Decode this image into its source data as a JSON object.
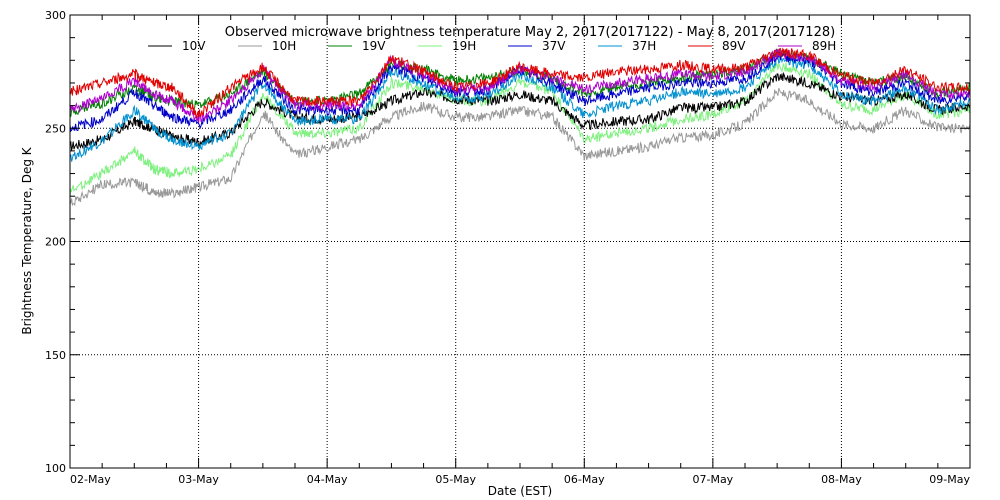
{
  "chart_data": {
    "type": "line",
    "title": "Observed microwave brightness temperature May  2, 2017(2017122) - May  8, 2017(2017128)",
    "xlabel": "Date (EST)",
    "ylabel": "Brightness Temperature, Deg K",
    "xlim": [
      0,
      7
    ],
    "ylim": [
      100,
      300
    ],
    "xticks": [
      {
        "x": 0,
        "label": "02-May"
      },
      {
        "x": 1,
        "label": "03-May"
      },
      {
        "x": 2,
        "label": "04-May"
      },
      {
        "x": 3,
        "label": "05-May"
      },
      {
        "x": 4,
        "label": "06-May"
      },
      {
        "x": 5,
        "label": "07-May"
      },
      {
        "x": 6,
        "label": "08-May"
      },
      {
        "x": 7,
        "label": "09-May"
      }
    ],
    "yticks": [
      100,
      150,
      200,
      250,
      300
    ],
    "grid": "dotted at major ticks",
    "legend_position": "top",
    "series": [
      {
        "name": "10V",
        "color": "#000000",
        "x": [
          0,
          0.25,
          0.5,
          0.65,
          0.8,
          1.0,
          1.25,
          1.5,
          1.75,
          2.0,
          2.25,
          2.5,
          2.75,
          3.0,
          3.25,
          3.5,
          3.75,
          4.0,
          4.25,
          4.5,
          4.75,
          5.0,
          5.25,
          5.5,
          5.75,
          6.0,
          6.25,
          6.5,
          6.75,
          7.0
        ],
        "y": [
          242,
          245,
          253,
          250,
          246,
          244,
          248,
          262,
          255,
          254,
          255,
          262,
          266,
          263,
          262,
          265,
          262,
          251,
          253,
          254,
          259,
          259,
          262,
          273,
          270,
          264,
          262,
          265,
          258,
          260
        ]
      },
      {
        "name": "10H",
        "color": "#999999",
        "x": [
          0,
          0.25,
          0.5,
          0.65,
          0.8,
          1.0,
          1.25,
          1.5,
          1.75,
          2.0,
          2.25,
          2.5,
          2.75,
          3.0,
          3.25,
          3.5,
          3.75,
          4.0,
          4.25,
          4.5,
          4.75,
          5.0,
          5.25,
          5.5,
          5.75,
          6.0,
          6.25,
          6.5,
          6.75,
          7.0
        ],
        "y": [
          217,
          225,
          226,
          222,
          221,
          224,
          228,
          257,
          238,
          242,
          245,
          255,
          260,
          255,
          255,
          258,
          255,
          238,
          240,
          242,
          246,
          247,
          252,
          266,
          262,
          252,
          250,
          258,
          250,
          250
        ]
      },
      {
        "name": "19V",
        "color": "#008000",
        "x": [
          0,
          0.25,
          0.5,
          0.65,
          0.8,
          1.0,
          1.25,
          1.5,
          1.75,
          2.0,
          2.25,
          2.5,
          2.75,
          3.0,
          3.25,
          3.5,
          3.75,
          4.0,
          4.25,
          4.5,
          4.75,
          5.0,
          5.25,
          5.5,
          5.75,
          6.0,
          6.25,
          6.5,
          6.75,
          7.0
        ],
        "y": [
          257,
          261,
          268,
          264,
          262,
          260,
          265,
          275,
          262,
          262,
          265,
          278,
          276,
          271,
          272,
          276,
          272,
          265,
          268,
          270,
          272,
          274,
          276,
          283,
          281,
          274,
          270,
          273,
          265,
          268
        ]
      },
      {
        "name": "19H",
        "color": "#80f080",
        "x": [
          0,
          0.25,
          0.5,
          0.65,
          0.8,
          1.0,
          1.25,
          1.5,
          1.75,
          2.0,
          2.25,
          2.5,
          2.75,
          3.0,
          3.25,
          3.5,
          3.75,
          4.0,
          4.25,
          4.5,
          4.75,
          5.0,
          5.25,
          5.5,
          5.75,
          6.0,
          6.25,
          6.5,
          6.75,
          7.0
        ],
        "y": [
          222,
          230,
          240,
          232,
          230,
          232,
          238,
          265,
          248,
          248,
          250,
          270,
          268,
          262,
          262,
          270,
          266,
          245,
          248,
          250,
          254,
          256,
          262,
          278,
          274,
          260,
          258,
          265,
          256,
          258
        ]
      },
      {
        "name": "37V",
        "color": "#0000c8",
        "x": [
          0,
          0.25,
          0.5,
          0.65,
          0.8,
          1.0,
          1.25,
          1.5,
          1.75,
          2.0,
          2.25,
          2.5,
          2.75,
          3.0,
          3.25,
          3.5,
          3.75,
          4.0,
          4.25,
          4.5,
          4.75,
          5.0,
          5.25,
          5.5,
          5.75,
          6.0,
          6.25,
          6.5,
          6.75,
          7.0
        ],
        "y": [
          250,
          254,
          266,
          260,
          255,
          252,
          258,
          272,
          258,
          258,
          258,
          277,
          272,
          266,
          267,
          276,
          270,
          262,
          265,
          268,
          270,
          270,
          272,
          282,
          280,
          270,
          266,
          270,
          262,
          265
        ]
      },
      {
        "name": "37H",
        "color": "#0090d0",
        "x": [
          0,
          0.25,
          0.5,
          0.65,
          0.8,
          1.0,
          1.25,
          1.5,
          1.75,
          2.0,
          2.25,
          2.5,
          2.75,
          3.0,
          3.25,
          3.5,
          3.75,
          4.0,
          4.25,
          4.5,
          4.75,
          5.0,
          5.25,
          5.5,
          5.75,
          6.0,
          6.25,
          6.5,
          6.75,
          7.0
        ],
        "y": [
          237,
          244,
          258,
          250,
          245,
          242,
          248,
          270,
          253,
          254,
          254,
          275,
          270,
          263,
          264,
          274,
          268,
          256,
          260,
          262,
          266,
          265,
          268,
          280,
          278,
          265,
          262,
          268,
          258,
          262
        ]
      },
      {
        "name": "89V",
        "color": "#e00000",
        "x": [
          0,
          0.25,
          0.5,
          0.65,
          0.8,
          1.0,
          1.25,
          1.5,
          1.75,
          2.0,
          2.25,
          2.5,
          2.75,
          3.0,
          3.25,
          3.5,
          3.75,
          4.0,
          4.25,
          4.5,
          4.75,
          5.0,
          5.25,
          5.5,
          5.75,
          6.0,
          6.25,
          6.5,
          6.75,
          7.0
        ],
        "y": [
          266,
          270,
          274,
          270,
          268,
          256,
          268,
          277,
          262,
          262,
          262,
          281,
          275,
          268,
          270,
          277,
          274,
          272,
          275,
          276,
          278,
          276,
          277,
          284,
          282,
          273,
          270,
          276,
          268,
          268
        ]
      },
      {
        "name": "89H",
        "color": "#b000d0",
        "x": [
          0,
          0.25,
          0.5,
          0.65,
          0.8,
          1.0,
          1.25,
          1.5,
          1.75,
          2.0,
          2.25,
          2.5,
          2.75,
          3.0,
          3.25,
          3.5,
          3.75,
          4.0,
          4.25,
          4.5,
          4.75,
          5.0,
          5.25,
          5.5,
          5.75,
          6.0,
          6.25,
          6.5,
          6.75,
          7.0
        ],
        "y": [
          258,
          263,
          271,
          265,
          262,
          254,
          262,
          276,
          260,
          260,
          260,
          280,
          274,
          267,
          268,
          276,
          272,
          267,
          270,
          272,
          274,
          273,
          275,
          283,
          281,
          271,
          268,
          274,
          265,
          266
        ]
      }
    ]
  }
}
